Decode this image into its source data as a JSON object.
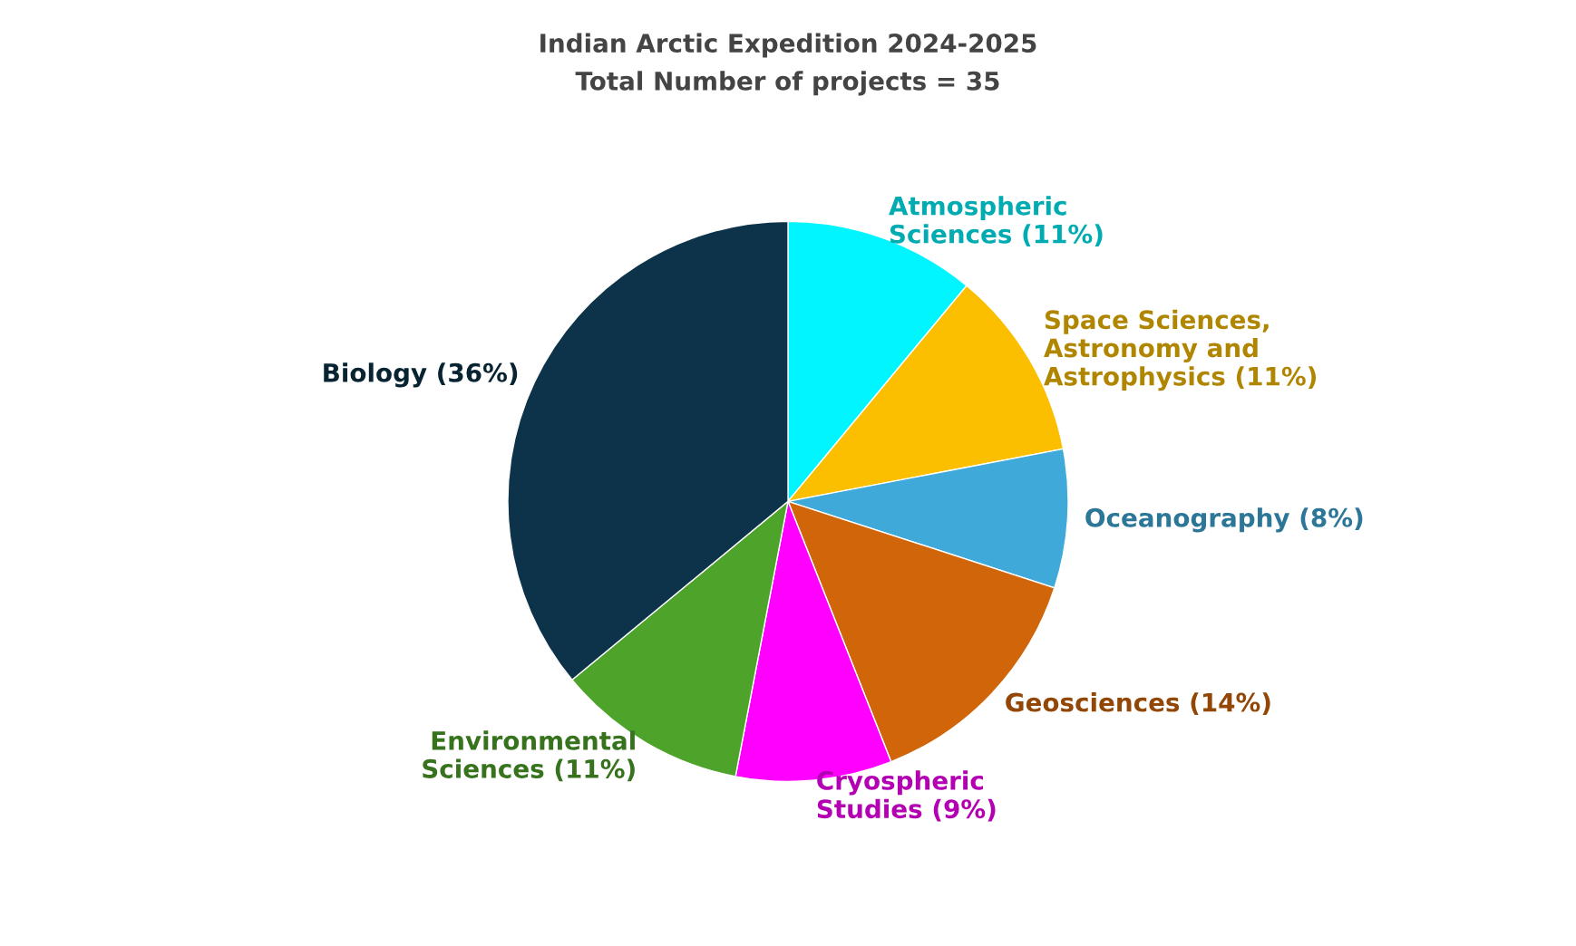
{
  "chart_data": {
    "type": "pie",
    "title": "Indian Arctic Expedition 2024-2025",
    "subtitle": "Total Number of projects = 35",
    "categories": [
      "Atmospheric Sciences",
      "Space Sciences, Astronomy and Astrophysics",
      "Oceanography",
      "Geosciences",
      "Cryospheric Studies",
      "Environmental Sciences",
      "Biology"
    ],
    "values": [
      11,
      11,
      8,
      14,
      9,
      11,
      36
    ],
    "value_labels": [
      "(11%)",
      "(11%)",
      "(8%)",
      "(14%)",
      "(9%)",
      "(11%)",
      "(36%)"
    ],
    "colors": [
      "#00f5ff",
      "#fbbf00",
      "#3fa9d9",
      "#d0650a",
      "#ff00ff",
      "#4ea42a",
      "#0c3349"
    ],
    "legend": false
  }
}
